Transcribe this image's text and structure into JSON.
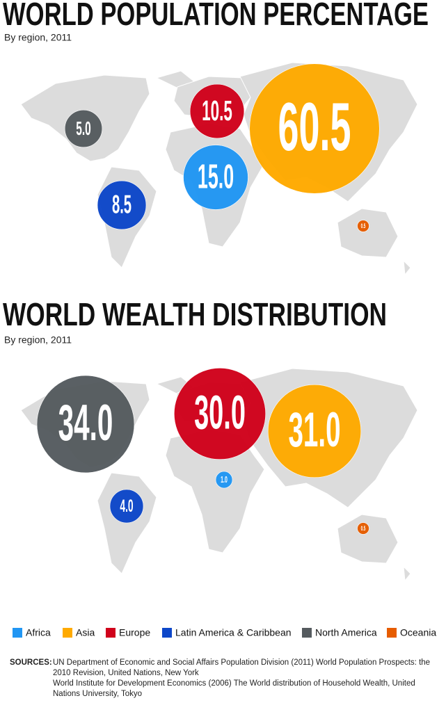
{
  "chart_data": [
    {
      "type": "bubble",
      "title": "WORLD POPULATION PERCENTAGE",
      "subtitle": "By region, 2011",
      "values": [
        15.0,
        60.5,
        10.5,
        8.5,
        5.0,
        0.5
      ],
      "value_labels": [
        "15.0",
        "60.5",
        "10.5",
        "8.5",
        "5.0",
        "0.5"
      ]
    },
    {
      "type": "bubble",
      "title": "WORLD WEALTH DISTRIBUTION",
      "subtitle": "By region, 2011",
      "values": [
        1.0,
        31.0,
        30.0,
        4.0,
        34.0,
        0.5
      ],
      "value_labels": [
        "1.0",
        "31.0",
        "30.0",
        "4.0",
        "34.0",
        "0.5"
      ]
    }
  ],
  "legend": {
    "items": [
      {
        "name": "Africa",
        "color": "#2196f3"
      },
      {
        "name": "Asia",
        "color": "#ffaa00"
      },
      {
        "name": "Europe",
        "color": "#d0021b"
      },
      {
        "name": "Latin America & Caribbean",
        "color": "#0d47c9"
      },
      {
        "name": "North America",
        "color": "#555b5f"
      },
      {
        "name": "Oceania",
        "color": "#e65c00"
      }
    ]
  },
  "sources": {
    "label": "SOURCES:",
    "lines": [
      "UN Department of Economic and Social Affairs Population Division (2011) World Population Prospects: the 2010 Revision, United Nations, New York",
      "World Institute for Development Economics (2006) The World distribution of Household Wealth, United Nations University, Tokyo"
    ]
  }
}
